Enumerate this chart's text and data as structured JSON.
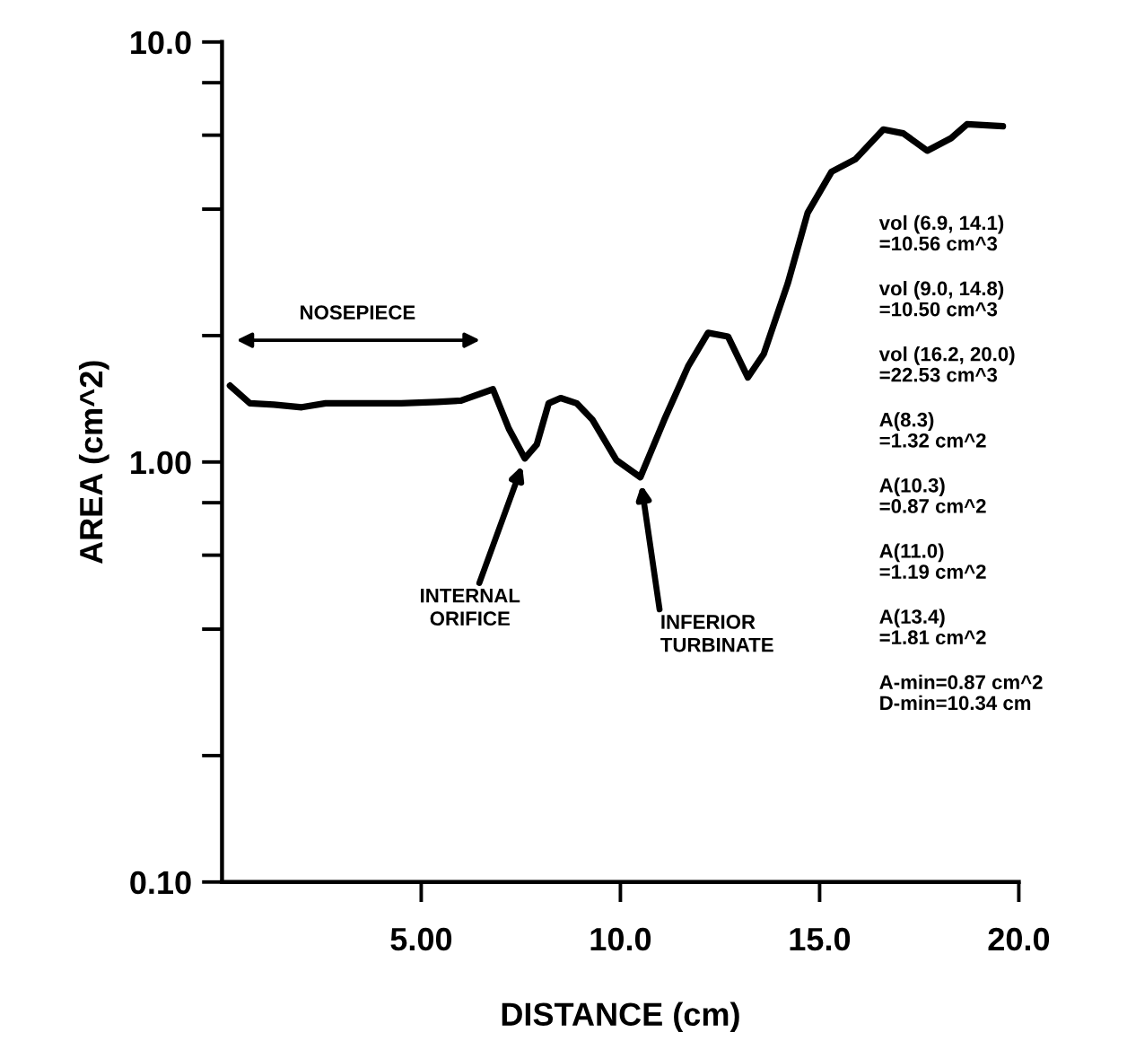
{
  "chart_data": {
    "type": "line",
    "xlabel": "DISTANCE (cm)",
    "ylabel": "AREA (cm^2)",
    "log": "y",
    "xlim": [
      0,
      20
    ],
    "ylim": [
      0.1,
      10
    ],
    "xticks": [
      {
        "value": 5,
        "label": "5.00"
      },
      {
        "value": 10,
        "label": "10.0"
      },
      {
        "value": 15,
        "label": "15.0"
      },
      {
        "value": 20,
        "label": "20.0"
      }
    ],
    "yticks": [
      {
        "value": 0.1,
        "label": "0.10"
      },
      {
        "value": 0.2,
        "label": null
      },
      {
        "value": 0.4,
        "label": null
      },
      {
        "value": 0.6,
        "label": null
      },
      {
        "value": 0.8,
        "label": null
      },
      {
        "value": 1,
        "label": "1.00"
      },
      {
        "value": 2,
        "label": null
      },
      {
        "value": 4,
        "label": null
      },
      {
        "value": 6,
        "label": null
      },
      {
        "value": 8,
        "label": null
      },
      {
        "value": 10,
        "label": "10.0"
      }
    ],
    "grid": false,
    "marker": "none",
    "line_style": "solid",
    "series": [
      {
        "color": "#000000",
        "x": [
          0.2,
          0.7,
          1.3,
          2.0,
          2.6,
          3.5,
          4.5,
          5.4,
          6.0,
          6.8,
          7.2,
          7.6,
          7.9,
          8.2,
          8.5,
          8.9,
          9.3,
          9.9,
          10.5,
          11.1,
          11.7,
          12.2,
          12.7,
          13.2,
          13.6,
          14.2,
          14.7,
          15.3,
          15.9,
          16.6,
          17.1,
          17.7,
          18.3,
          18.7,
          19.6
        ],
        "values": [
          1.52,
          1.38,
          1.37,
          1.35,
          1.38,
          1.38,
          1.38,
          1.39,
          1.4,
          1.49,
          1.2,
          1.02,
          1.1,
          1.38,
          1.42,
          1.38,
          1.26,
          1.01,
          0.92,
          1.26,
          1.69,
          2.03,
          1.99,
          1.59,
          1.81,
          2.66,
          3.92,
          4.91,
          5.26,
          6.19,
          6.06,
          5.51,
          5.9,
          6.37,
          6.3
        ]
      }
    ],
    "annotations": [
      "NOSEPIECE",
      {
        "text": "INTERNAL\nORIFICE",
        "x": 7.6,
        "y": 1.02
      },
      {
        "text": "INFERIOR\nTURBINATE",
        "x": 10.5,
        "y": 0.92
      },
      "vol (6.9, 14.1)\n=10.56 cm^3",
      "vol (9.0, 14.8)\n=10.50 cm^3",
      "vol (16.2, 20.0)\n=22.53 cm^3",
      "A(8.3)\n=1.32 cm^2",
      "A(10.3)\n=0.87 cm^2",
      "A(11.0)\n=1.19 cm^2",
      "A(13.4)\n=1.81 cm^2",
      "A-min=0.87 cm^2\nD-min=10.34 cm"
    ]
  }
}
